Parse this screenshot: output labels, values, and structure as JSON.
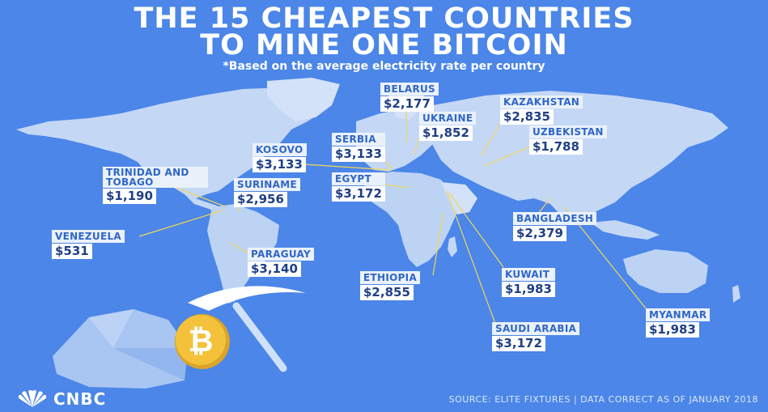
{
  "title_line1": "THE 15 CHEAPEST COUNTRIES",
  "title_line2": "TO MINE ONE BITCOIN",
  "subtitle": "*Based on the average electricity rate per country",
  "countries": [
    {
      "name": "BELARUS",
      "price": "$2,177"
    },
    {
      "name": "UKRAINE",
      "price": "$1,852"
    },
    {
      "name": "KAZAKHSTAN",
      "price": "$2,835"
    },
    {
      "name": "UZBEKISTAN",
      "price": "$1,788"
    },
    {
      "name": "SERBIA",
      "price": "$3,133"
    },
    {
      "name": "KOSOVO",
      "price": "$3,133"
    },
    {
      "name": "TRINIDAD AND TOBAGO",
      "price": "$1,190"
    },
    {
      "name": "SURINAME",
      "price": "$2,956"
    },
    {
      "name": "EGYPT",
      "price": "$3,172"
    },
    {
      "name": "VENEZUELA",
      "price": "$531"
    },
    {
      "name": "PARAGUAY",
      "price": "$3,140"
    },
    {
      "name": "BANGLADESH",
      "price": "$2,379"
    },
    {
      "name": "ETHIOPIA",
      "price": "$2,855"
    },
    {
      "name": "KUWAIT",
      "price": "$1,983"
    },
    {
      "name": "MYANMAR",
      "price": "$1,983"
    },
    {
      "name": "SAUDI ARABIA",
      "price": "$3,172"
    }
  ],
  "brand": "CNBC",
  "source": "SOURCE: ELITE FIXTURES | DATA CORRECT AS OF JANUARY 2018",
  "colors": {
    "background": "#4b86e8",
    "land": "#c9dbf6",
    "label_text": "#2f66c7",
    "price_text": "#1f3f86",
    "leader": "#f2d65a",
    "coin": "#f3c23a"
  },
  "icons": [
    "bitcoin-coin-icon",
    "pickaxe-icon",
    "peacock-logo-icon"
  ]
}
